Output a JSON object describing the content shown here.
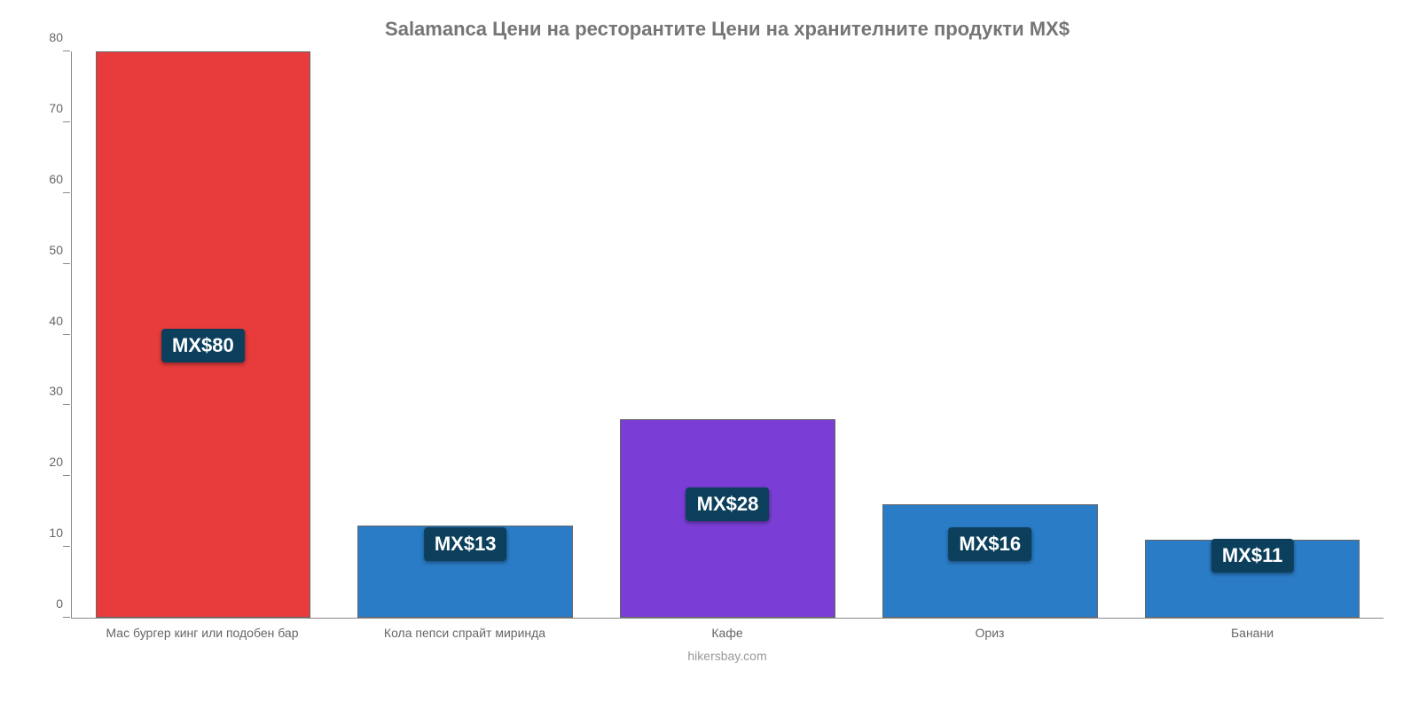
{
  "chart": {
    "type": "bar",
    "title": "Salamanca Цени на ресторантите Цени на хранителните продукти MX$",
    "title_fontsize": 22,
    "title_color": "#757575",
    "footer": "hikersbay.com",
    "footer_fontsize": 14,
    "footer_color": "#999999",
    "background_color": "#ffffff",
    "axis_color": "#888888",
    "tick_label_color": "#666666",
    "tick_label_fontsize": 14,
    "xlabel_fontsize": 14,
    "xlabel_color": "#666666",
    "ylim": [
      0,
      80
    ],
    "ytick_step": 10,
    "yticks": [
      0,
      10,
      20,
      30,
      40,
      50,
      60,
      70,
      80
    ],
    "bar_width_pct": 82,
    "bar_border_color": "#666666",
    "value_badge_bg": "#0b3f5c",
    "value_badge_text_color": "#ffffff",
    "value_badge_fontsize": 22,
    "categories": [
      "Мас бургер кинг или подобен бар",
      "Кола пепси спрайт миринда",
      "Кафе",
      "Ориз",
      "Банани"
    ],
    "values": [
      80,
      13,
      28,
      16,
      11
    ],
    "value_labels": [
      "MX$80",
      "MX$13",
      "MX$28",
      "MX$16",
      "MX$11"
    ],
    "bar_colors": [
      "#e83b3b",
      "#2a7cc7",
      "#7a3ed6",
      "#2a7cc7",
      "#2a7cc7"
    ],
    "badge_bottom_pct": [
      45,
      10,
      17,
      10,
      8
    ]
  }
}
